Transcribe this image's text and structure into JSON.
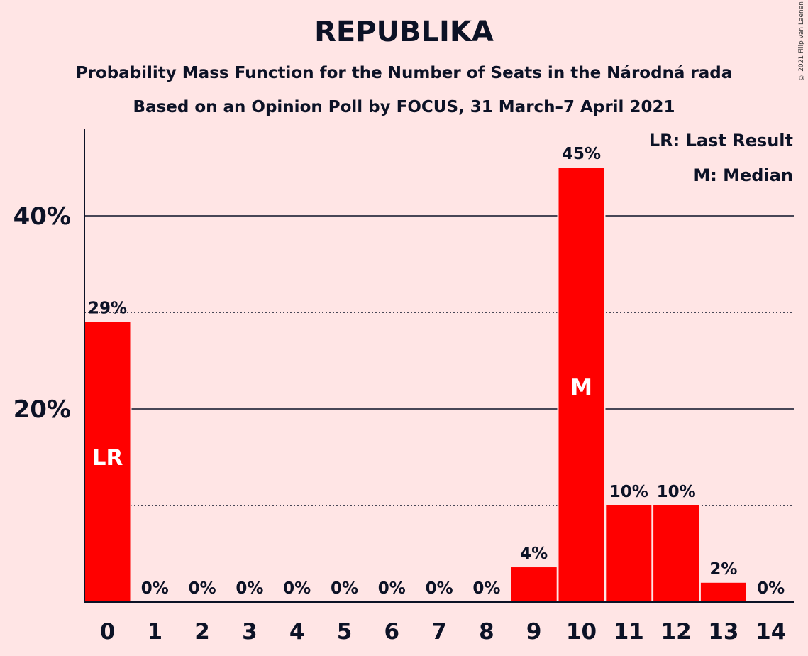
{
  "chart_data": {
    "type": "bar",
    "title": "REPUBLIKA",
    "subtitle": "Probability Mass Function for the Number of Seats in the Národná rada",
    "subtitle2": "Based on an Opinion Poll by FOCUS, 31 March–7 April 2021",
    "categories": [
      "0",
      "1",
      "2",
      "3",
      "4",
      "5",
      "6",
      "7",
      "8",
      "9",
      "10",
      "11",
      "12",
      "13",
      "14"
    ],
    "values": [
      29,
      0,
      0,
      0,
      0,
      0,
      0,
      0,
      0,
      3.6,
      45,
      10,
      10,
      2,
      0
    ],
    "value_labels": [
      "29%",
      "0%",
      "0%",
      "0%",
      "0%",
      "0%",
      "0%",
      "0%",
      "0%",
      "4%",
      "45%",
      "10%",
      "10%",
      "2%",
      "0%"
    ],
    "ylim": [
      0,
      49
    ],
    "yticks": [
      {
        "value": 20,
        "label": "20%"
      },
      {
        "value": 40,
        "label": "40%"
      }
    ],
    "dotted_gridlines": [
      10,
      30
    ],
    "bar_annotations": [
      {
        "index": 0,
        "text": "LR"
      },
      {
        "index": 10,
        "text": "M"
      }
    ],
    "legend": [
      "LR: Last Result",
      "M: Median"
    ],
    "legend_position": "top-right",
    "bar_color": "#FF0000"
  },
  "copyright": "© 2021 Filip van Laenen"
}
